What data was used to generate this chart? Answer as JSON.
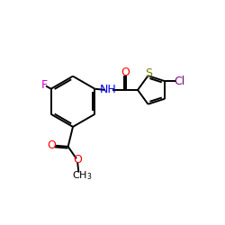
{
  "background": "#ffffff",
  "bond_color": "#000000",
  "bond_lw": 1.4,
  "atom_colors": {
    "F": "#cc00cc",
    "O": "#ff0000",
    "N": "#0000ff",
    "S": "#808000",
    "Cl": "#800080",
    "C": "#000000"
  },
  "figsize": [
    2.5,
    2.5
  ],
  "dpi": 100
}
